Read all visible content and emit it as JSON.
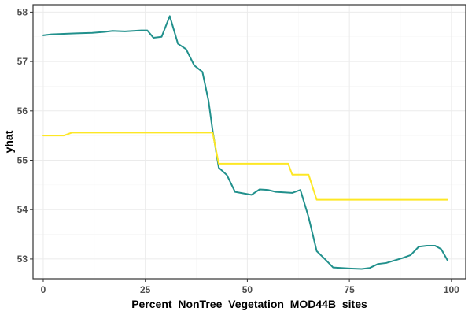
{
  "chart_data": {
    "type": "line",
    "xlabel": "Percent_NonTree_Vegetation_MOD44B_sites",
    "ylabel": "yhat",
    "xlim": [
      -2.5,
      103.5
    ],
    "ylim": [
      52.6,
      58.15
    ],
    "x_ticks": [
      0,
      25,
      50,
      75,
      100
    ],
    "y_ticks": [
      53,
      54,
      55,
      56,
      57,
      58
    ],
    "grid": true,
    "legend": "none",
    "series": [
      {
        "color": "#21908C",
        "points": [
          [
            0,
            57.53
          ],
          [
            2,
            57.55
          ],
          [
            5,
            57.56
          ],
          [
            8,
            57.57
          ],
          [
            12,
            57.58
          ],
          [
            15,
            57.6
          ],
          [
            17,
            57.62
          ],
          [
            20,
            57.61
          ],
          [
            22,
            57.62
          ],
          [
            24,
            57.63
          ],
          [
            25.5,
            57.63
          ],
          [
            27,
            57.48
          ],
          [
            29,
            57.5
          ],
          [
            31,
            57.92
          ],
          [
            33,
            57.36
          ],
          [
            35,
            57.25
          ],
          [
            37,
            56.92
          ],
          [
            39,
            56.79
          ],
          [
            40.5,
            56.2
          ],
          [
            41.5,
            55.6
          ],
          [
            43,
            54.85
          ],
          [
            45,
            54.7
          ],
          [
            47,
            54.36
          ],
          [
            49,
            54.33
          ],
          [
            51,
            54.3
          ],
          [
            53,
            54.41
          ],
          [
            55,
            54.4
          ],
          [
            57,
            54.36
          ],
          [
            59,
            54.35
          ],
          [
            61,
            54.34
          ],
          [
            63,
            54.4
          ],
          [
            65,
            53.85
          ],
          [
            67,
            53.16
          ],
          [
            69,
            53.0
          ],
          [
            71,
            52.83
          ],
          [
            73,
            52.82
          ],
          [
            75,
            52.81
          ],
          [
            78,
            52.8
          ],
          [
            80,
            52.82
          ],
          [
            82,
            52.9
          ],
          [
            84,
            52.92
          ],
          [
            86,
            52.97
          ],
          [
            88,
            53.02
          ],
          [
            90,
            53.08
          ],
          [
            92,
            53.25
          ],
          [
            94,
            53.27
          ],
          [
            96,
            53.27
          ],
          [
            97.5,
            53.2
          ],
          [
            99,
            52.98
          ]
        ]
      },
      {
        "color": "#FDE725",
        "points": [
          [
            0,
            55.5
          ],
          [
            5,
            55.5
          ],
          [
            7,
            55.56
          ],
          [
            20,
            55.56
          ],
          [
            41.5,
            55.56
          ],
          [
            43,
            54.93
          ],
          [
            50,
            54.93
          ],
          [
            60,
            54.93
          ],
          [
            61,
            54.71
          ],
          [
            65,
            54.71
          ],
          [
            67,
            54.2
          ],
          [
            99,
            54.2
          ]
        ]
      }
    ]
  }
}
